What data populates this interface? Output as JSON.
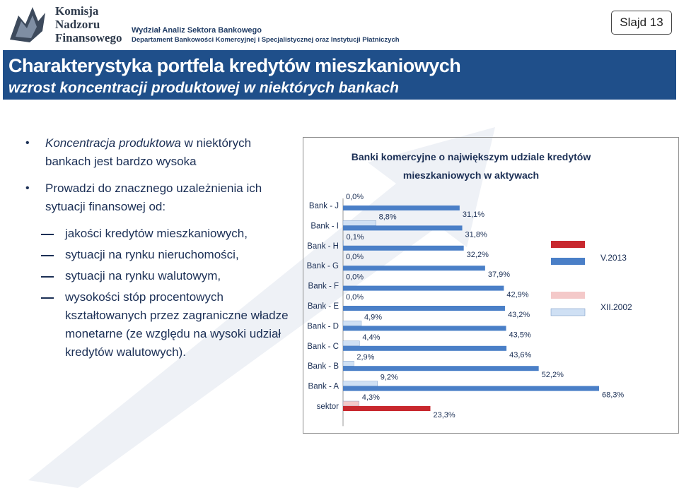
{
  "header": {
    "logo_text": [
      "Komisja",
      "Nadzoru",
      "Finansowego"
    ],
    "department_line1": "Wydział Analiz Sektora Bankowego",
    "department_line2": "Departament Bankowości Komercyjnej i Specjalistycznej oraz Instytucji Płatniczych",
    "slide_label": "Slajd 13"
  },
  "title": {
    "main": "Charakterystyka portfela kredytów mieszkaniowych",
    "subtitle": "wzrost koncentracji produktowej w niektórych bankach"
  },
  "bullets": {
    "b1_italic": "Koncentracja produktowa",
    "b1_rest": " w niektórych bankach jest bardzo wysoka",
    "b2": "Prowadzi do znacznego uzależnienia ich sytuacji finansowej od:",
    "sub1": "jakości kredytów mieszkaniowych,",
    "sub2": "sytuacji na rynku nieruchomości,",
    "sub3": "sytuacji na rynku walutowym,",
    "sub4": "wysokości stóp procentowych kształtowanych przez zagraniczne władze monetarne (ze względu na wysoki udział kredytów walutowych)."
  },
  "colors": {
    "title_bar": "#1f4f8a",
    "v2013_blue": "#4a7fc7",
    "xii2002_light": "#cfe0f4",
    "sektor_v2013_red": "#c8282e",
    "sektor_xii2002_light": "#f4c9c9"
  },
  "chart_data": {
    "type": "bar",
    "orientation": "horizontal",
    "title": "Banki komercyjne o największym udziale kredytów mieszkaniowych w aktywach",
    "categories": [
      "Bank - J",
      "Bank - I",
      "Bank - H",
      "Bank - G",
      "Bank - F",
      "Bank - E",
      "Bank - D",
      "Bank - C",
      "Bank - B",
      "Bank - A",
      "sektor"
    ],
    "series": [
      {
        "name": "XII.2002",
        "values": [
          0.0,
          8.8,
          0.1,
          0.0,
          0.0,
          0.0,
          4.9,
          4.4,
          2.9,
          9.2,
          4.3
        ]
      },
      {
        "name": "V.2013",
        "values": [
          31.1,
          31.8,
          32.2,
          37.9,
          42.9,
          43.2,
          43.5,
          43.6,
          52.2,
          68.3,
          23.3
        ]
      }
    ],
    "labels_xii2002": [
      "0,0%",
      "8,8%",
      "0,1%",
      "0,0%",
      "0,0%",
      "0,0%",
      "4,9%",
      "4,4%",
      "2,9%",
      "9,2%",
      "4,3%"
    ],
    "labels_v2013": [
      "31,1%",
      "31,8%",
      "32,2%",
      "37,9%",
      "42,9%",
      "43,2%",
      "43,5%",
      "43,6%",
      "52,2%",
      "68,3%",
      "23,3%"
    ],
    "legend": [
      "V.2013",
      "XII.2002"
    ],
    "legend_position": "right",
    "xlim": [
      0,
      70
    ],
    "grid": false
  }
}
